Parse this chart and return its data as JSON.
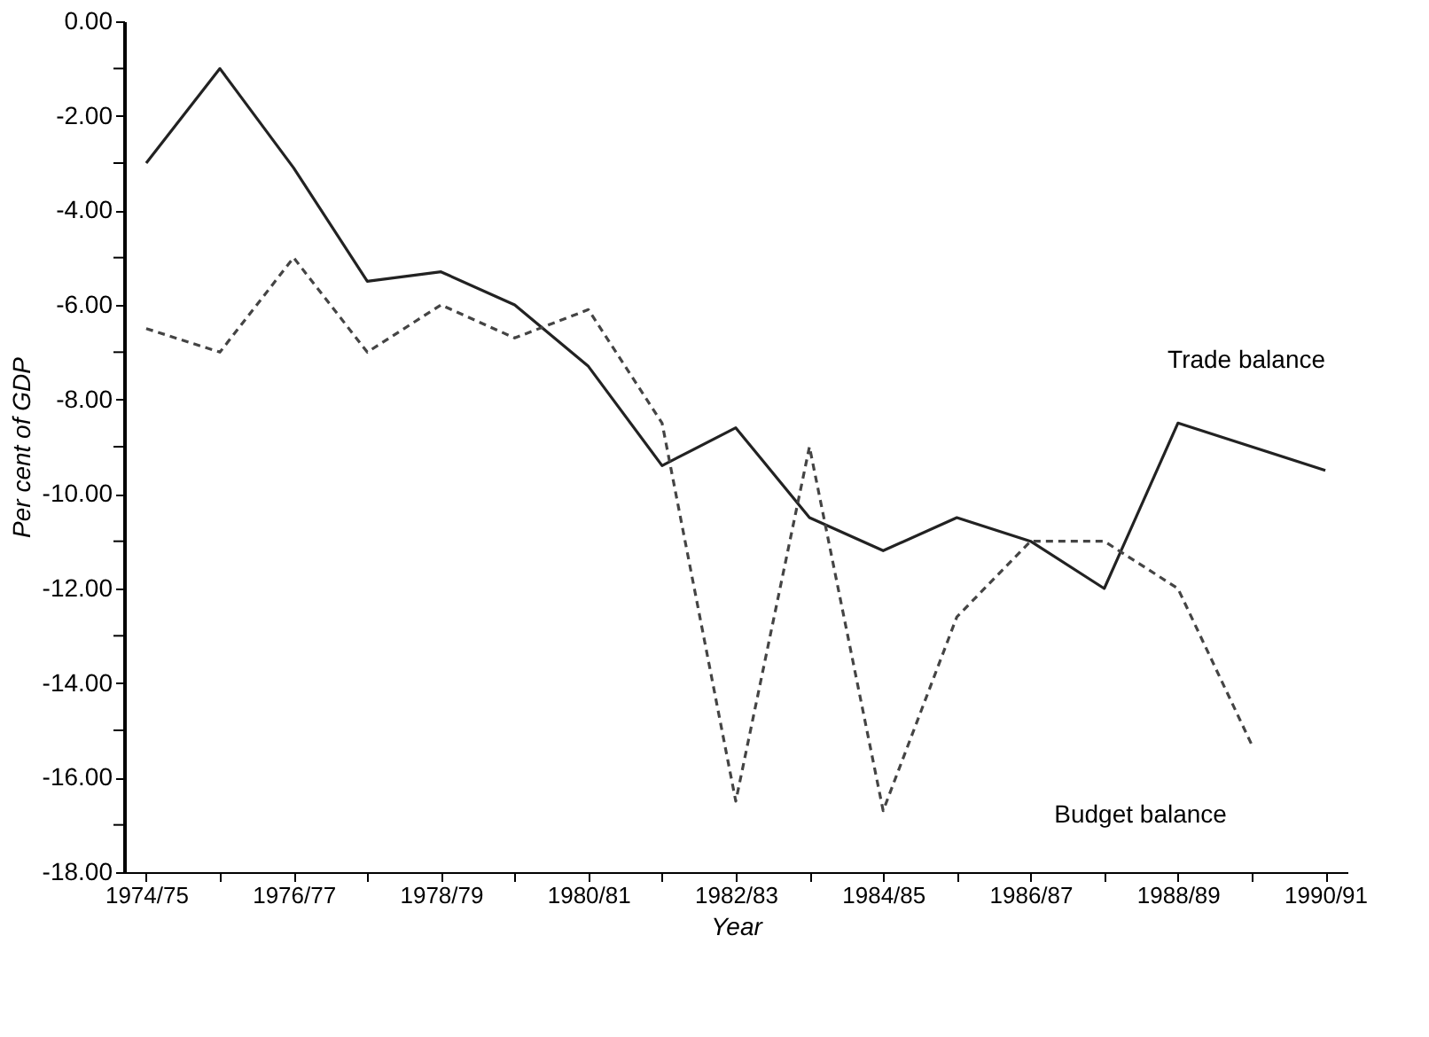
{
  "chart_data": {
    "type": "line",
    "xlabel": "Year",
    "ylabel": "Per cent of GDP",
    "categories": [
      "1974/75",
      null,
      "1976/77",
      null,
      "1978/79",
      null,
      "1980/81",
      null,
      "1982/83",
      null,
      "1984/85",
      null,
      "1986/87",
      null,
      "1988/89",
      null,
      "1990/91"
    ],
    "series": [
      {
        "name": "Trade balance",
        "color": "#222222",
        "line_style": "solid",
        "values": [
          -3,
          -1,
          -3.1,
          -5.5,
          -5.3,
          -6,
          -7.3,
          -9.4,
          -8.6,
          -10.5,
          -11.2,
          -10.5,
          -11,
          -12,
          -8.5,
          -9,
          -9.5
        ]
      },
      {
        "name": "Budget balance",
        "color": "#444444",
        "line_style": "dashed",
        "values": [
          -6.5,
          -7,
          -5,
          -7,
          -6,
          -6.7,
          -6.1,
          -8.5,
          -16.5,
          -9,
          -16.7,
          -12.6,
          -11,
          -11,
          -12,
          -15.3,
          null
        ]
      }
    ],
    "ylim": [
      -18,
      0
    ],
    "yticks": [
      {
        "value": 0,
        "label": "0.00"
      },
      {
        "value": -1,
        "label": null
      },
      {
        "value": -2,
        "label": "-2.00"
      },
      {
        "value": -3,
        "label": null
      },
      {
        "value": -4,
        "label": "-4.00"
      },
      {
        "value": -5,
        "label": null
      },
      {
        "value": -6,
        "label": "-6.00"
      },
      {
        "value": -7,
        "label": null
      },
      {
        "value": -8,
        "label": "-8.00"
      },
      {
        "value": -9,
        "label": null
      },
      {
        "value": -10,
        "label": "-10.00"
      },
      {
        "value": -11,
        "label": null
      },
      {
        "value": -12,
        "label": "-12.00"
      },
      {
        "value": -13,
        "label": null
      },
      {
        "value": -14,
        "label": "-14.00"
      },
      {
        "value": -15,
        "label": null
      },
      {
        "value": -16,
        "label": "-16.00"
      },
      {
        "value": -17,
        "label": null
      },
      {
        "value": -18,
        "label": "-18.00"
      }
    ],
    "grid": false,
    "legend": false
  }
}
